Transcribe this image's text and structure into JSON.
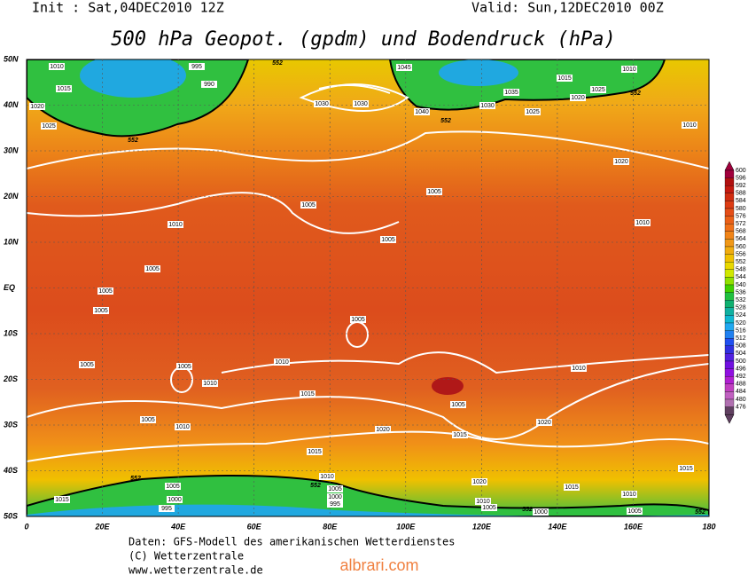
{
  "header": {
    "init": "Init : Sat,04DEC2010 12Z",
    "valid": "Valid: Sun,12DEC2010 00Z",
    "title": "500 hPa Geopot. (gpdm) und Bodendruck (hPa)"
  },
  "map": {
    "lat_labels": [
      "50N",
      "40N",
      "30N",
      "20N",
      "10N",
      "EQ",
      "10S",
      "20S",
      "30S",
      "40S",
      "50S"
    ],
    "lon_labels": [
      "0",
      "20E",
      "40E",
      "60E",
      "80E",
      "100E",
      "120E",
      "140E",
      "160E",
      "180"
    ],
    "isobar_labels": [
      "1010",
      "1015",
      "1020",
      "1025",
      "995",
      "990",
      "1030",
      "1030",
      "1045",
      "1040",
      "1035",
      "1030",
      "1020",
      "1025",
      "1010",
      "1015",
      "1025",
      "1010",
      "1020",
      "1010",
      "1005",
      "1005",
      "1005",
      "1010",
      "1005",
      "1005",
      "1005",
      "1005",
      "1010",
      "1005",
      "1005",
      "1010",
      "1010",
      "1015",
      "1005",
      "1015",
      "1020",
      "1020",
      "1015",
      "1010",
      "1005",
      "1020",
      "1015",
      "1010",
      "1005",
      "1015",
      "1010",
      "1005",
      "1000",
      "995",
      "1005",
      "1000",
      "995",
      "1015",
      "1010",
      "1000",
      "1005"
    ],
    "height_labels": [
      "552",
      "552",
      "552",
      "552",
      "552",
      "552",
      "552",
      "552"
    ]
  },
  "colorbar": {
    "labels": [
      "600",
      "596",
      "592",
      "588",
      "584",
      "580",
      "576",
      "572",
      "568",
      "564",
      "560",
      "556",
      "552",
      "548",
      "544",
      "540",
      "536",
      "532",
      "528",
      "524",
      "520",
      "516",
      "512",
      "508",
      "504",
      "500",
      "496",
      "492",
      "488",
      "484",
      "480",
      "476"
    ],
    "colors": [
      "#a0003c",
      "#b01010",
      "#c41a10",
      "#d02c10",
      "#dc3c14",
      "#e44e18",
      "#ea6018",
      "#f07018",
      "#f08418",
      "#f09818",
      "#f0ac10",
      "#f0c000",
      "#e8d800",
      "#d0e800",
      "#90e000",
      "#40d000",
      "#20c040",
      "#10b070",
      "#10b0a0",
      "#10b8d0",
      "#20a8f0",
      "#2080f0",
      "#2050f0",
      "#3030e0",
      "#5020e0",
      "#7010e0",
      "#9010e0",
      "#b020d0",
      "#c040c0",
      "#c060c0",
      "#b070b0",
      "#604060"
    ]
  },
  "footer": {
    "source": "Daten: GFS-Modell des amerikanischen Wetterdienstes",
    "copyright": "(C) Wetterzentrale",
    "url": "www.wetterzentrale.de"
  },
  "watermark": "albrari.com"
}
